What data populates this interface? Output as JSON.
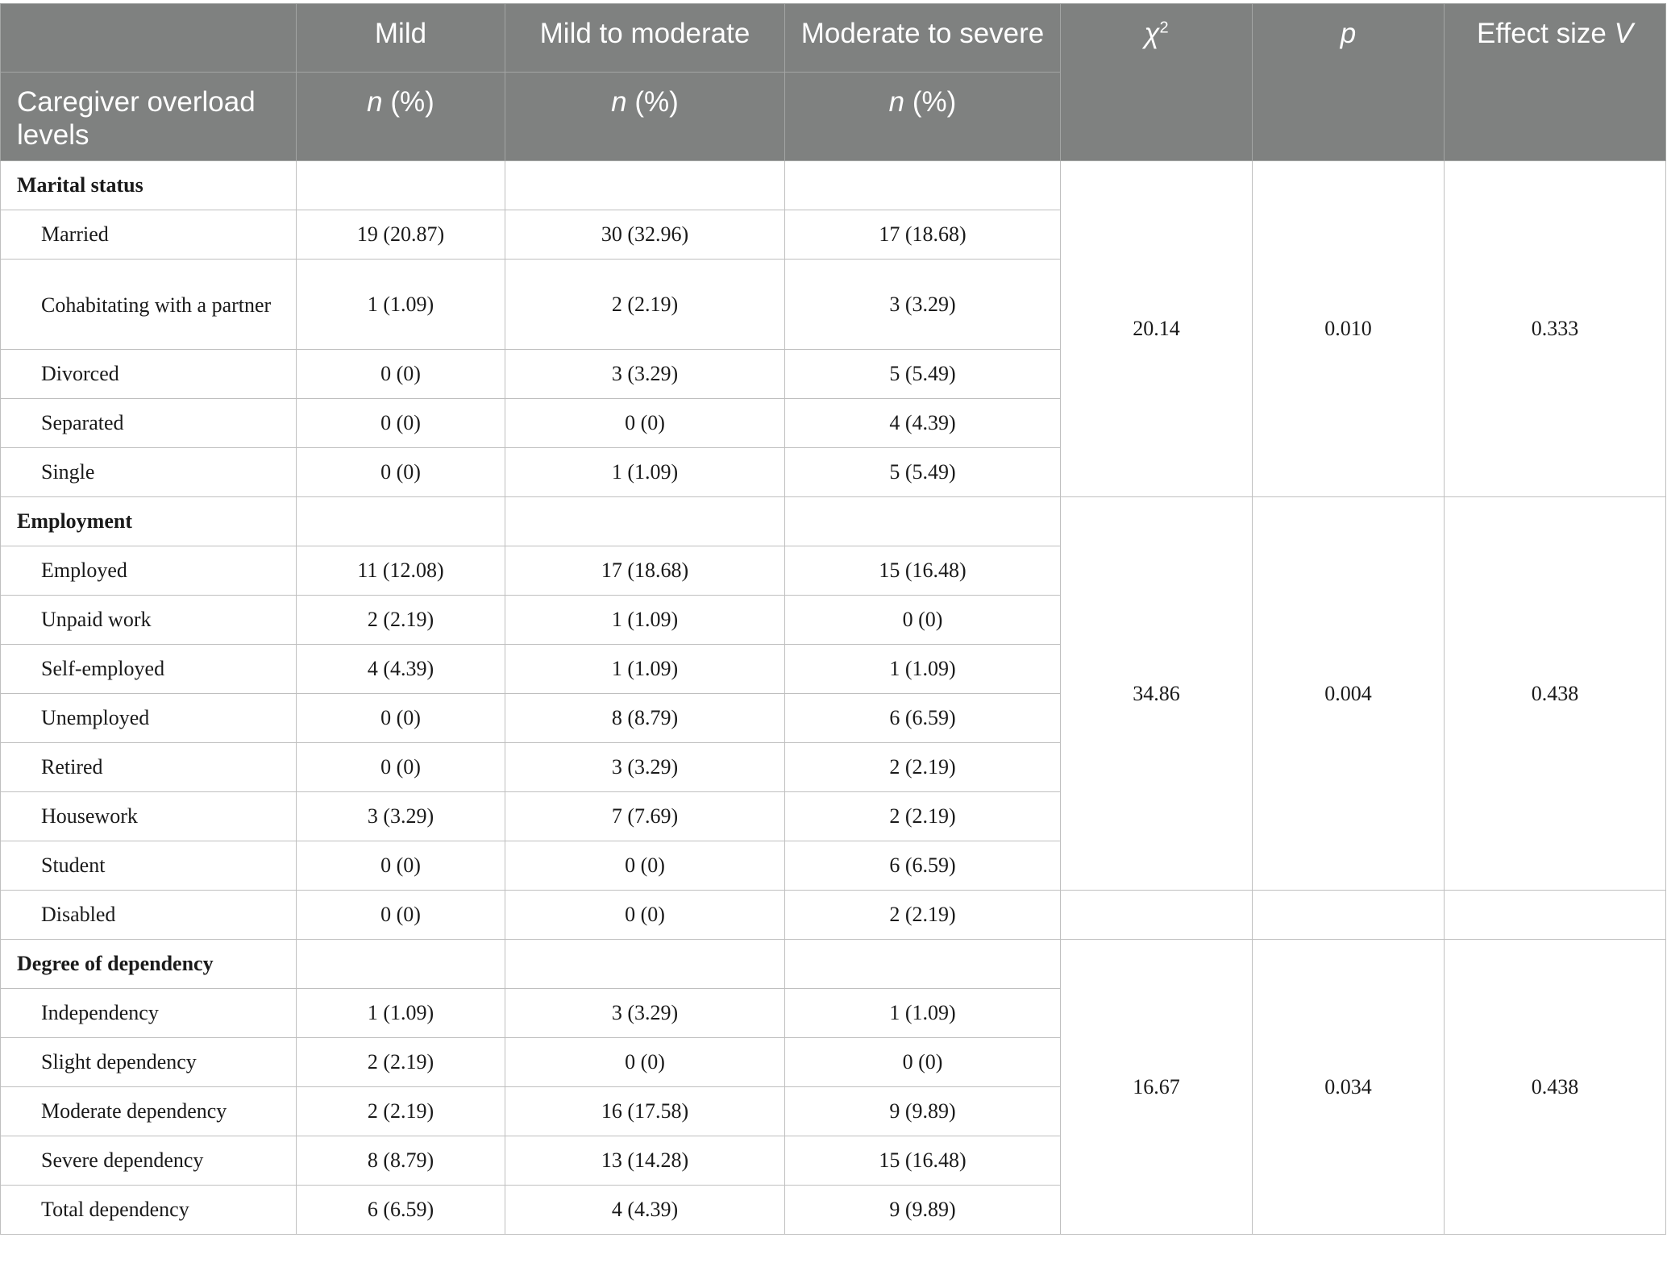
{
  "header": {
    "row1": [
      "",
      "Mild",
      "Mild to moderate",
      "Moderate to severe",
      "χ",
      "p",
      "Effect size "
    ],
    "chi_sup": "2",
    "effect_v": "V",
    "row_label": "Caregiver overload levels",
    "n_pct": "(%)",
    "n": "n"
  },
  "sections": [
    {
      "title": "Marital status",
      "chi2": "20.14",
      "p": "0.010",
      "v": "0.333",
      "rows": [
        {
          "label": "Married",
          "mild": "19 (20.87)",
          "mm": "30 (32.96)",
          "ms": "17 (18.68)"
        },
        {
          "label": "Cohabitating with a partner",
          "mild": "1 (1.09)",
          "mm": "2 (2.19)",
          "ms": "3 (3.29)"
        },
        {
          "label": "Divorced",
          "mild": "0 (0)",
          "mm": "3 (3.29)",
          "ms": "5 (5.49)"
        },
        {
          "label": "Separated",
          "mild": "0 (0)",
          "mm": "0 (0)",
          "ms": "4 (4.39)"
        },
        {
          "label": "Single",
          "mild": "0 (0)",
          "mm": "1 (1.09)",
          "ms": "5 (5.49)"
        }
      ]
    },
    {
      "title": "Employment",
      "chi2": "34.86",
      "p": "0.004",
      "v": "0.438",
      "rows": [
        {
          "label": "Employed",
          "mild": "11 (12.08)",
          "mm": "17 (18.68)",
          "ms": "15 (16.48)"
        },
        {
          "label": "Unpaid work",
          "mild": "2 (2.19)",
          "mm": "1 (1.09)",
          "ms": "0 (0)"
        },
        {
          "label": "Self-employed",
          "mild": "4 (4.39)",
          "mm": "1 (1.09)",
          "ms": "1 (1.09)"
        },
        {
          "label": "Unemployed",
          "mild": "0 (0)",
          "mm": "8 (8.79)",
          "ms": "6 (6.59)"
        },
        {
          "label": "Retired",
          "mild": "0 (0)",
          "mm": "3 (3.29)",
          "ms": "2 (2.19)"
        },
        {
          "label": "Housework",
          "mild": "3 (3.29)",
          "mm": "7 (7.69)",
          "ms": "2 (2.19)"
        },
        {
          "label": "Student",
          "mild": "0 (0)",
          "mm": "0 (0)",
          "ms": "6 (6.59)"
        }
      ],
      "extra": {
        "label": "Disabled",
        "mild": "0 (0)",
        "mm": "0 (0)",
        "ms": "2 (2.19)"
      }
    },
    {
      "title": "Degree of dependency",
      "chi2": "16.67",
      "p": "0.034",
      "v": "0.438",
      "rows": [
        {
          "label": "Independency",
          "mild": "1 (1.09)",
          "mm": "3 (3.29)",
          "ms": "1 (1.09)"
        },
        {
          "label": "Slight dependency",
          "mild": "2 (2.19)",
          "mm": "0 (0)",
          "ms": "0 (0)"
        },
        {
          "label": "Moderate dependency",
          "mild": "2 (2.19)",
          "mm": "16 (17.58)",
          "ms": "9 (9.89)"
        },
        {
          "label": "Severe dependency",
          "mild": "8 (8.79)",
          "mm": "13 (14.28)",
          "ms": "15 (16.48)"
        },
        {
          "label": "Total dependency",
          "mild": "6 (6.59)",
          "mm": "4 (4.39)",
          "ms": "9 (9.89)"
        }
      ]
    }
  ]
}
